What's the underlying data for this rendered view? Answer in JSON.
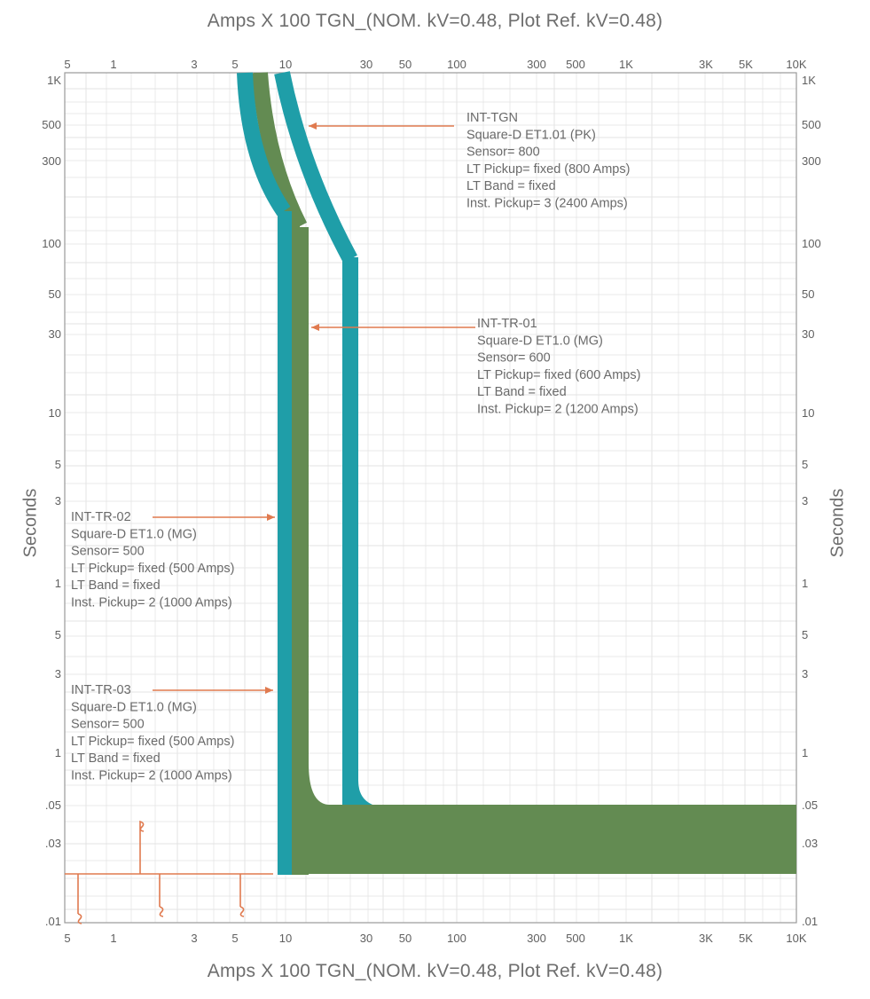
{
  "chart_data": {
    "type": "line",
    "title": "Amps X 100 TGN_(NOM. kV=0.48, Plot Ref. kV=0.48)",
    "xlabel": "Amps X 100 TGN_(NOM. kV=0.48, Plot Ref. kV=0.48)",
    "ylabel": "Seconds",
    "x_scale": "log",
    "y_scale": "log",
    "grid": true,
    "x_ticks": [
      "5",
      "1",
      "3",
      "5",
      "10",
      "30",
      "50",
      "100",
      "300",
      "500",
      "1K",
      "3K",
      "5K",
      "10K"
    ],
    "y_ticks": [
      "1K",
      "500",
      "300",
      "100",
      "50",
      "30",
      "10",
      "5",
      "3",
      "1",
      "5",
      "3",
      "1",
      ".05",
      ".03",
      ".01"
    ],
    "series": [
      {
        "name": "INT-TR-03",
        "color": "#1f9ea8",
        "points": [
          [
            5.0,
            1000
          ],
          [
            6.0,
            520
          ],
          [
            7.5,
            300
          ],
          [
            9.0,
            175
          ],
          [
            9.0,
            0.02
          ]
        ]
      },
      {
        "name": "INT-TR-02",
        "color": "#1f9ea8",
        "points": [
          [
            5.0,
            1000
          ],
          [
            6.0,
            520
          ],
          [
            7.5,
            300
          ],
          [
            9.0,
            175
          ],
          [
            9.0,
            0.02
          ]
        ]
      },
      {
        "name": "INT-TR-01",
        "color": "#638b52",
        "points": [
          [
            6.8,
            1000
          ],
          [
            7.8,
            520
          ],
          [
            9.5,
            300
          ],
          [
            11.2,
            190
          ],
          [
            11.2,
            0.02
          ]
        ]
      },
      {
        "name": "INT-TGN",
        "color": "#1f9ea8",
        "points": [
          [
            9.5,
            1000
          ],
          [
            12,
            520
          ],
          [
            16,
            300
          ],
          [
            23,
            140
          ],
          [
            23,
            0.05
          ]
        ]
      }
    ],
    "legend": "annotations"
  },
  "annotations": [
    {
      "id": "int-tgn",
      "lines": [
        "INT-TGN",
        "Square-D ET1.01 (PK)",
        "Sensor= 800",
        "LT Pickup= fixed (800 Amps)",
        "LT Band = fixed",
        "Inst. Pickup= 3 (2400 Amps)"
      ]
    },
    {
      "id": "int-tr-01",
      "lines": [
        "INT-TR-01",
        "Square-D ET1.0 (MG)",
        "Sensor= 600",
        "LT Pickup= fixed (600 Amps)",
        "LT Band = fixed",
        "Inst. Pickup= 2 (1200 Amps)"
      ]
    },
    {
      "id": "int-tr-02",
      "lines": [
        "INT-TR-02",
        "Square-D ET1.0 (MG)",
        "Sensor= 500",
        "LT Pickup= fixed (500 Amps)",
        "LT Band = fixed",
        "Inst. Pickup= 2 (1000 Amps)"
      ]
    },
    {
      "id": "int-tr-03",
      "lines": [
        "INT-TR-03",
        "Square-D ET1.0 (MG)",
        "Sensor= 500",
        "LT Pickup= fixed (500 Amps)",
        "LT Band = fixed",
        "Inst. Pickup= 2 (1000 Amps)"
      ]
    }
  ],
  "colors": {
    "teal": "#1f9ea8",
    "green": "#638b52",
    "annotation": "#e07a4f",
    "grid": "#e3e3e3"
  }
}
